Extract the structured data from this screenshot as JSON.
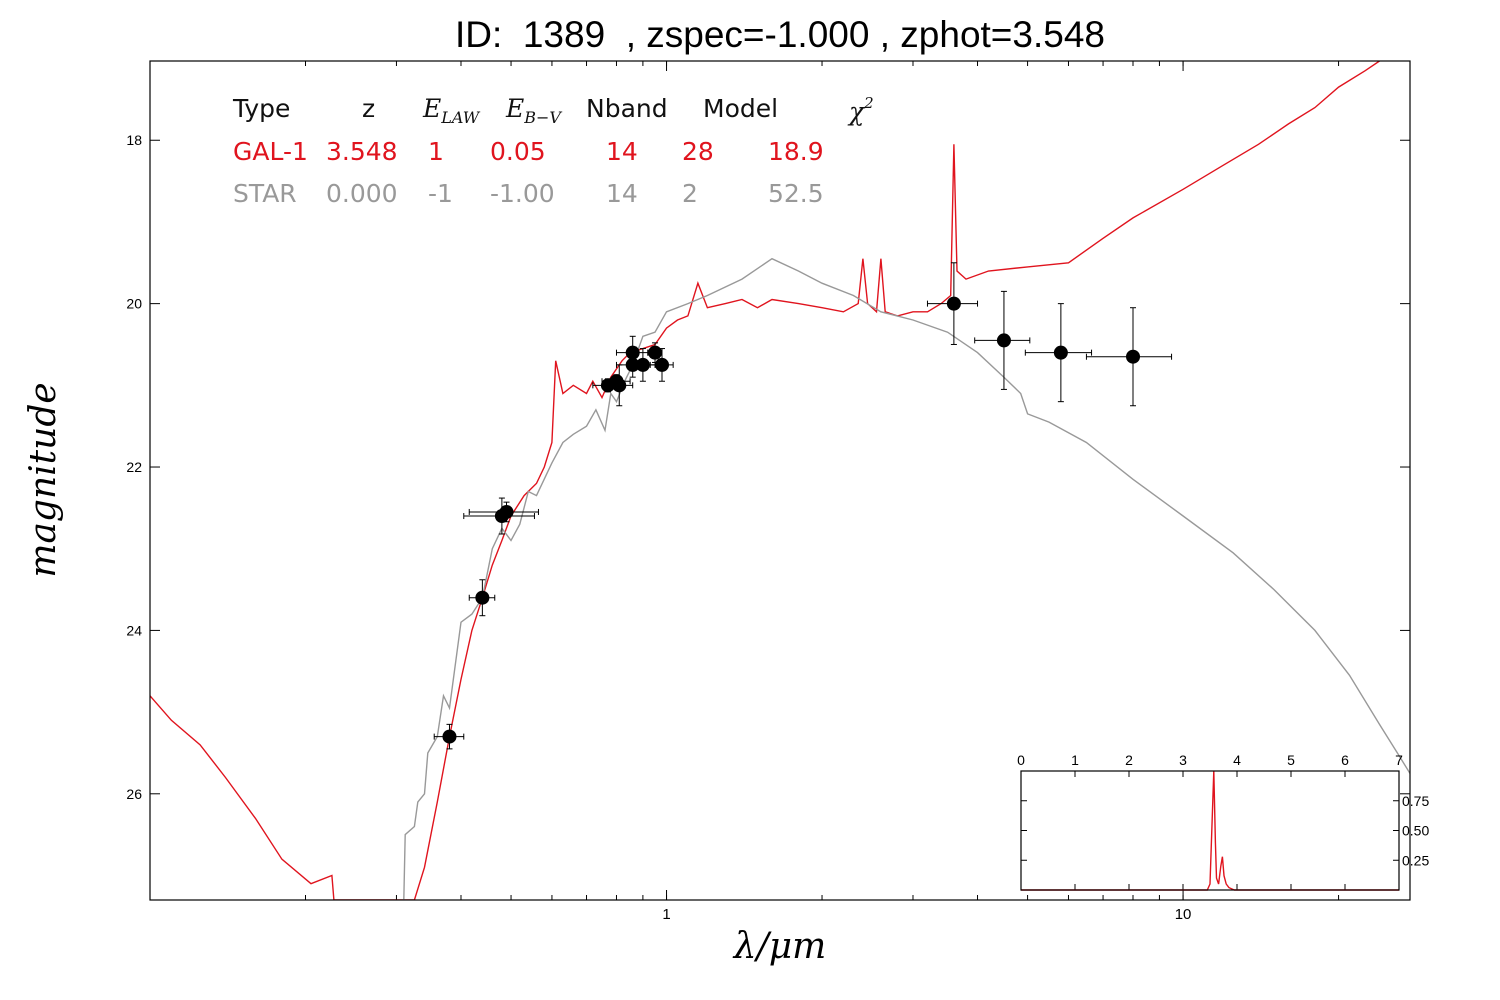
{
  "title": "ID:  1389  , zspec=-1.000 , zphot=3.548",
  "colors": {
    "galaxy": "#e0141e",
    "star": "#999999",
    "points": "#000000"
  },
  "table": {
    "headers": [
      "Type",
      "z",
      "E",
      "E",
      "Nband",
      "Model",
      "χ"
    ],
    "e_law_sub": "LAW",
    "e_bv_sub": "B−V",
    "chi_sup": "2",
    "rows": [
      {
        "name": "gal",
        "color": "#e0141e",
        "cells": [
          "GAL-1",
          "3.548",
          "1",
          "0.05",
          "14",
          "28",
          "18.9"
        ]
      },
      {
        "name": "star",
        "color": "#999999",
        "cells": [
          "STAR",
          "0.000",
          "-1",
          "-1.00",
          "14",
          "2",
          "52.5"
        ]
      }
    ]
  },
  "chart_data": [
    {
      "type": "line",
      "xlabel": "λ/μm",
      "ylabel": "magnitude",
      "xscale": "log",
      "xlim": [
        0.1,
        27.5
      ],
      "ylim": [
        27.3,
        17.03
      ],
      "y_inverted": true,
      "xticks": [
        {
          "label": "1",
          "value": 1
        },
        {
          "label": "10",
          "value": 10
        }
      ],
      "yticks": [
        {
          "label": "18",
          "value": 18
        },
        {
          "label": "20",
          "value": 20
        },
        {
          "label": "22",
          "value": 22
        },
        {
          "label": "24",
          "value": 24
        },
        {
          "label": "26",
          "value": 26
        }
      ],
      "series": [
        {
          "name": "GAL-1",
          "color": "#e0141e",
          "points": [
            [
              0.1,
              24.8
            ],
            [
              0.11,
              25.1
            ],
            [
              0.125,
              25.4
            ],
            [
              0.14,
              25.8
            ],
            [
              0.16,
              26.3
            ],
            [
              0.18,
              26.8
            ],
            [
              0.205,
              27.1
            ],
            [
              0.225,
              27.0
            ],
            [
              0.227,
              27.3
            ],
            [
              0.325,
              27.3
            ],
            [
              0.34,
              26.9
            ],
            [
              0.36,
              26.1
            ],
            [
              0.38,
              25.3
            ],
            [
              0.4,
              24.6
            ],
            [
              0.42,
              24.0
            ],
            [
              0.44,
              23.6
            ],
            [
              0.46,
              23.2
            ],
            [
              0.48,
              22.9
            ],
            [
              0.5,
              22.6
            ],
            [
              0.53,
              22.35
            ],
            [
              0.56,
              22.2
            ],
            [
              0.58,
              22.0
            ],
            [
              0.6,
              21.7
            ],
            [
              0.61,
              20.7
            ],
            [
              0.63,
              21.1
            ],
            [
              0.66,
              21.0
            ],
            [
              0.7,
              21.1
            ],
            [
              0.72,
              20.95
            ],
            [
              0.75,
              21.15
            ],
            [
              0.78,
              20.9
            ],
            [
              0.82,
              20.7
            ],
            [
              0.85,
              20.6
            ],
            [
              0.9,
              20.55
            ],
            [
              0.95,
              20.5
            ],
            [
              1.0,
              20.3
            ],
            [
              1.05,
              20.2
            ],
            [
              1.1,
              20.15
            ],
            [
              1.15,
              19.75
            ],
            [
              1.2,
              20.05
            ],
            [
              1.3,
              20.0
            ],
            [
              1.4,
              19.95
            ],
            [
              1.5,
              20.05
            ],
            [
              1.6,
              19.95
            ],
            [
              1.8,
              20.0
            ],
            [
              2.0,
              20.05
            ],
            [
              2.2,
              20.1
            ],
            [
              2.35,
              20.0
            ],
            [
              2.4,
              19.45
            ],
            [
              2.45,
              20.0
            ],
            [
              2.55,
              20.1
            ],
            [
              2.6,
              19.45
            ],
            [
              2.65,
              20.1
            ],
            [
              2.8,
              20.15
            ],
            [
              3.0,
              20.1
            ],
            [
              3.2,
              20.1
            ],
            [
              3.4,
              20.0
            ],
            [
              3.55,
              19.9
            ],
            [
              3.6,
              18.05
            ],
            [
              3.65,
              19.6
            ],
            [
              3.8,
              19.7
            ],
            [
              4.2,
              19.6
            ],
            [
              5.0,
              19.55
            ],
            [
              6.0,
              19.5
            ],
            [
              7.0,
              19.2
            ],
            [
              8.0,
              18.95
            ],
            [
              10.0,
              18.6
            ],
            [
              12.0,
              18.3
            ],
            [
              14.0,
              18.05
            ],
            [
              16.0,
              17.8
            ],
            [
              18.0,
              17.6
            ],
            [
              20.0,
              17.35
            ],
            [
              22.5,
              17.15
            ],
            [
              24.0,
              17.03
            ]
          ]
        },
        {
          "name": "STAR",
          "color": "#999999",
          "points": [
            [
              0.31,
              27.3
            ],
            [
              0.312,
              26.5
            ],
            [
              0.325,
              26.4
            ],
            [
              0.33,
              26.1
            ],
            [
              0.34,
              26.0
            ],
            [
              0.345,
              25.5
            ],
            [
              0.36,
              25.3
            ],
            [
              0.37,
              24.8
            ],
            [
              0.38,
              24.95
            ],
            [
              0.4,
              23.9
            ],
            [
              0.42,
              23.8
            ],
            [
              0.44,
              23.6
            ],
            [
              0.46,
              23.0
            ],
            [
              0.48,
              22.75
            ],
            [
              0.5,
              22.9
            ],
            [
              0.52,
              22.7
            ],
            [
              0.54,
              22.3
            ],
            [
              0.56,
              22.35
            ],
            [
              0.6,
              21.95
            ],
            [
              0.63,
              21.7
            ],
            [
              0.66,
              21.6
            ],
            [
              0.7,
              21.5
            ],
            [
              0.73,
              21.3
            ],
            [
              0.76,
              21.55
            ],
            [
              0.78,
              21.1
            ],
            [
              0.8,
              21.2
            ],
            [
              0.83,
              20.95
            ],
            [
              0.86,
              20.75
            ],
            [
              0.9,
              20.4
            ],
            [
              0.95,
              20.35
            ],
            [
              1.0,
              20.1
            ],
            [
              1.1,
              20.0
            ],
            [
              1.2,
              19.9
            ],
            [
              1.4,
              19.7
            ],
            [
              1.6,
              19.45
            ],
            [
              1.8,
              19.6
            ],
            [
              2.0,
              19.75
            ],
            [
              2.3,
              19.9
            ],
            [
              2.6,
              20.1
            ],
            [
              3.0,
              20.2
            ],
            [
              3.5,
              20.35
            ],
            [
              4.0,
              20.6
            ],
            [
              4.5,
              20.9
            ],
            [
              4.85,
              21.1
            ],
            [
              5.0,
              21.35
            ],
            [
              5.5,
              21.45
            ],
            [
              6.5,
              21.7
            ],
            [
              8.0,
              22.15
            ],
            [
              10.0,
              22.6
            ],
            [
              12.5,
              23.05
            ],
            [
              15.0,
              23.5
            ],
            [
              18.0,
              24.0
            ],
            [
              21.0,
              24.55
            ],
            [
              24.0,
              25.15
            ],
            [
              26.0,
              25.5
            ],
            [
              27.5,
              25.75
            ]
          ]
        },
        {
          "name": "photometry",
          "type": "scatter",
          "color": "#000000",
          "points": [
            {
              "x": 0.38,
              "y": 25.3,
              "xerr": 0.025,
              "yerr": 0.15
            },
            {
              "x": 0.44,
              "y": 23.6,
              "xerr": 0.025,
              "yerr": 0.22
            },
            {
              "x": 0.48,
              "y": 22.6,
              "xerr": 0.075,
              "yerr": 0.22
            },
            {
              "x": 0.49,
              "y": 22.55,
              "xerr": 0.075,
              "yerr": 0.12
            },
            {
              "x": 0.77,
              "y": 21.0,
              "xerr": 0.05,
              "yerr": 0.08
            },
            {
              "x": 0.8,
              "y": 20.95,
              "xerr": 0.05,
              "yerr": 0.08
            },
            {
              "x": 0.81,
              "y": 21.0,
              "xerr": 0.05,
              "yerr": 0.25
            },
            {
              "x": 0.86,
              "y": 20.6,
              "xerr": 0.06,
              "yerr": 0.2
            },
            {
              "x": 0.86,
              "y": 20.75,
              "xerr": 0.06,
              "yerr": 0.15
            },
            {
              "x": 0.9,
              "y": 20.75,
              "xerr": 0.05,
              "yerr": 0.2
            },
            {
              "x": 0.95,
              "y": 20.6,
              "xerr": 0.03,
              "yerr": 0.12
            },
            {
              "x": 0.98,
              "y": 20.75,
              "xerr": 0.05,
              "yerr": 0.2
            },
            {
              "x": 3.6,
              "y": 20.0,
              "xerr": 0.4,
              "yerr": 0.5
            },
            {
              "x": 4.5,
              "y": 20.45,
              "xerr": 0.55,
              "yerr": 0.6
            },
            {
              "x": 5.8,
              "y": 20.6,
              "xerr": 0.85,
              "yerr": 0.6
            },
            {
              "x": 8.0,
              "y": 20.65,
              "xerr": 1.5,
              "yerr": 0.6
            }
          ]
        }
      ]
    },
    {
      "type": "line",
      "inset": true,
      "xlim": [
        0,
        7
      ],
      "ylim": [
        0,
        1.0
      ],
      "xticks": [
        "0",
        "1",
        "2",
        "3",
        "4",
        "5",
        "6",
        "7"
      ],
      "yticks": [
        {
          "label": "0.25",
          "value": 0.25
        },
        {
          "label": "0.50",
          "value": 0.5
        },
        {
          "label": "0.75",
          "value": 0.75
        }
      ],
      "series": [
        {
          "name": "P(z)",
          "color": "#e0141e",
          "points": [
            [
              0,
              0
            ],
            [
              3.3,
              0
            ],
            [
              3.45,
              0
            ],
            [
              3.5,
              0.05
            ],
            [
              3.54,
              0.6
            ],
            [
              3.57,
              1.0
            ],
            [
              3.6,
              0.4
            ],
            [
              3.62,
              0.1
            ],
            [
              3.66,
              0.05
            ],
            [
              3.7,
              0.2
            ],
            [
              3.73,
              0.28
            ],
            [
              3.76,
              0.12
            ],
            [
              3.8,
              0.05
            ],
            [
              3.85,
              0.02
            ],
            [
              3.95,
              0
            ],
            [
              7,
              0
            ]
          ]
        }
      ]
    }
  ]
}
